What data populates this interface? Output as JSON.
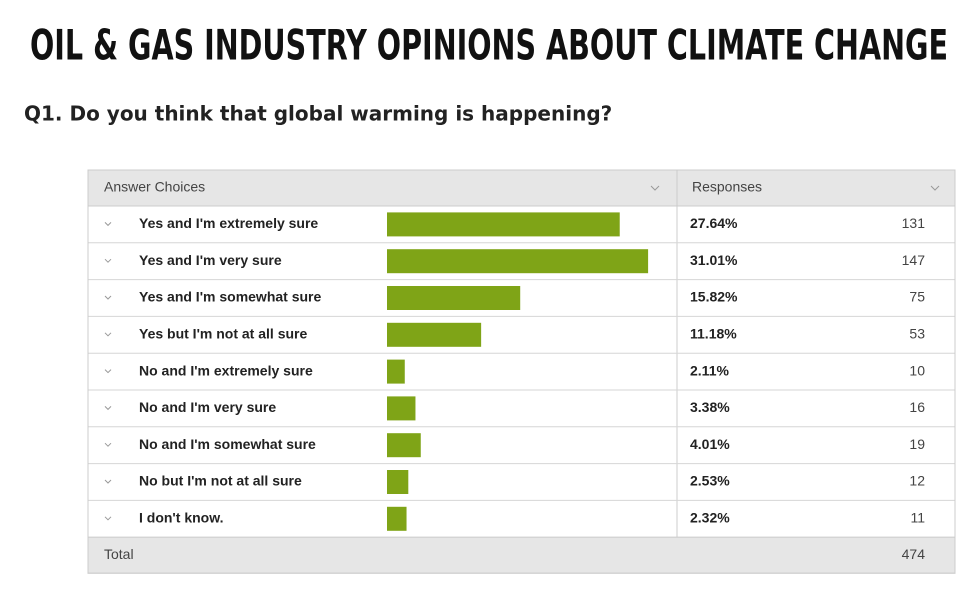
{
  "title": "OIL & GAS INDUSTRY OPINIONS ABOUT CLIMATE CHANGE",
  "question": "Q1.  Do you think that global warming is happening?",
  "table": {
    "headers": [
      "Answer Choices",
      "Responses"
    ],
    "rows": [
      {
        "choice": "Yes and I'm extremely sure",
        "percent": 27.64,
        "percent_label": "27.64%",
        "count": 131
      },
      {
        "choice": "Yes and I'm very sure",
        "percent": 31.01,
        "percent_label": "31.01%",
        "count": 147
      },
      {
        "choice": "Yes and I'm somewhat sure",
        "percent": 15.82,
        "percent_label": "15.82%",
        "count": 75
      },
      {
        "choice": "Yes but I'm not at all sure",
        "percent": 11.18,
        "percent_label": "11.18%",
        "count": 53
      },
      {
        "choice": "No and I'm extremely sure",
        "percent": 2.11,
        "percent_label": "2.11%",
        "count": 10
      },
      {
        "choice": "No and I'm very sure",
        "percent": 3.38,
        "percent_label": "3.38%",
        "count": 16
      },
      {
        "choice": "No and I'm somewhat sure",
        "percent": 4.01,
        "percent_label": "4.01%",
        "count": 19
      },
      {
        "choice": "No but I'm not at all sure",
        "percent": 2.53,
        "percent_label": "2.53%",
        "count": 12
      },
      {
        "choice": "I don't know.",
        "percent": 2.32,
        "percent_label": "2.32%",
        "count": 11
      }
    ],
    "total_label": "Total",
    "total": 474,
    "bar_color": "#7fa417"
  }
}
